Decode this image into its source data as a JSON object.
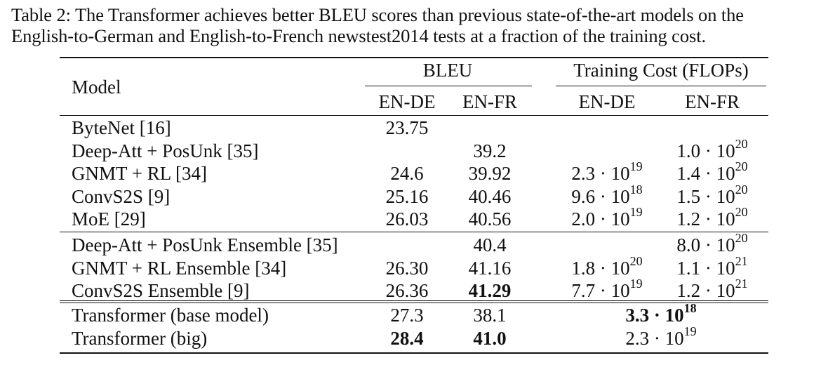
{
  "caption": {
    "line1": "Table 2: The Transformer achieves better BLEU scores than previous state-of-the-art models on the",
    "line2": "English-to-German and English-to-French newstest2014 tests at a fraction of the training cost."
  },
  "header": {
    "model": "Model",
    "bleu": "BLEU",
    "cost": "Training Cost (FLOPs)",
    "bleu_ende": "EN-DE",
    "bleu_enfr": "EN-FR",
    "cost_ende": "EN-DE",
    "cost_enfr": "EN-FR"
  },
  "groups": [
    [
      {
        "model": "ByteNet [16]",
        "bleu_ende": "23.75",
        "bleu_enfr": "",
        "cost_ende": "",
        "cost_enfr": ""
      },
      {
        "model": "Deep-Att + PosUnk [35]",
        "bleu_ende": "",
        "bleu_enfr": "39.2",
        "cost_ende": "",
        "cost_enfr": "1.0 · 10^20"
      },
      {
        "model": "GNMT + RL [34]",
        "bleu_ende": "24.6",
        "bleu_enfr": "39.92",
        "cost_ende": "2.3 · 10^19",
        "cost_enfr": "1.4 · 10^20"
      },
      {
        "model": "ConvS2S [9]",
        "bleu_ende": "25.16",
        "bleu_enfr": "40.46",
        "cost_ende": "9.6 · 10^18",
        "cost_enfr": "1.5 · 10^20"
      },
      {
        "model": "MoE [29]",
        "bleu_ende": "26.03",
        "bleu_enfr": "40.56",
        "cost_ende": "2.0 · 10^19",
        "cost_enfr": "1.2 · 10^20"
      }
    ],
    [
      {
        "model": "Deep-Att + PosUnk Ensemble [35]",
        "bleu_ende": "",
        "bleu_enfr": "40.4",
        "cost_ende": "",
        "cost_enfr": "8.0 · 10^20"
      },
      {
        "model": "GNMT + RL Ensemble [34]",
        "bleu_ende": "26.30",
        "bleu_enfr": "41.16",
        "cost_ende": "1.8 · 10^20",
        "cost_enfr": "1.1 · 10^21"
      },
      {
        "model": "ConvS2S Ensemble [9]",
        "bleu_ende": "26.36",
        "bleu_enfr": "41.29",
        "bleu_enfr_bold": true,
        "cost_ende": "7.7 · 10^19",
        "cost_enfr": "1.2 · 10^21"
      }
    ],
    [
      {
        "model": "Transformer (base model)",
        "bleu_ende": "27.3",
        "bleu_enfr": "38.1",
        "cost_merged": "3.3 · 10^18",
        "cost_bold": true
      },
      {
        "model": "Transformer (big)",
        "bleu_ende": "28.4",
        "bleu_ende_bold": true,
        "bleu_enfr": "41.0",
        "bleu_enfr_bold": true,
        "cost_merged": "2.3 · 10^19"
      }
    ]
  ]
}
